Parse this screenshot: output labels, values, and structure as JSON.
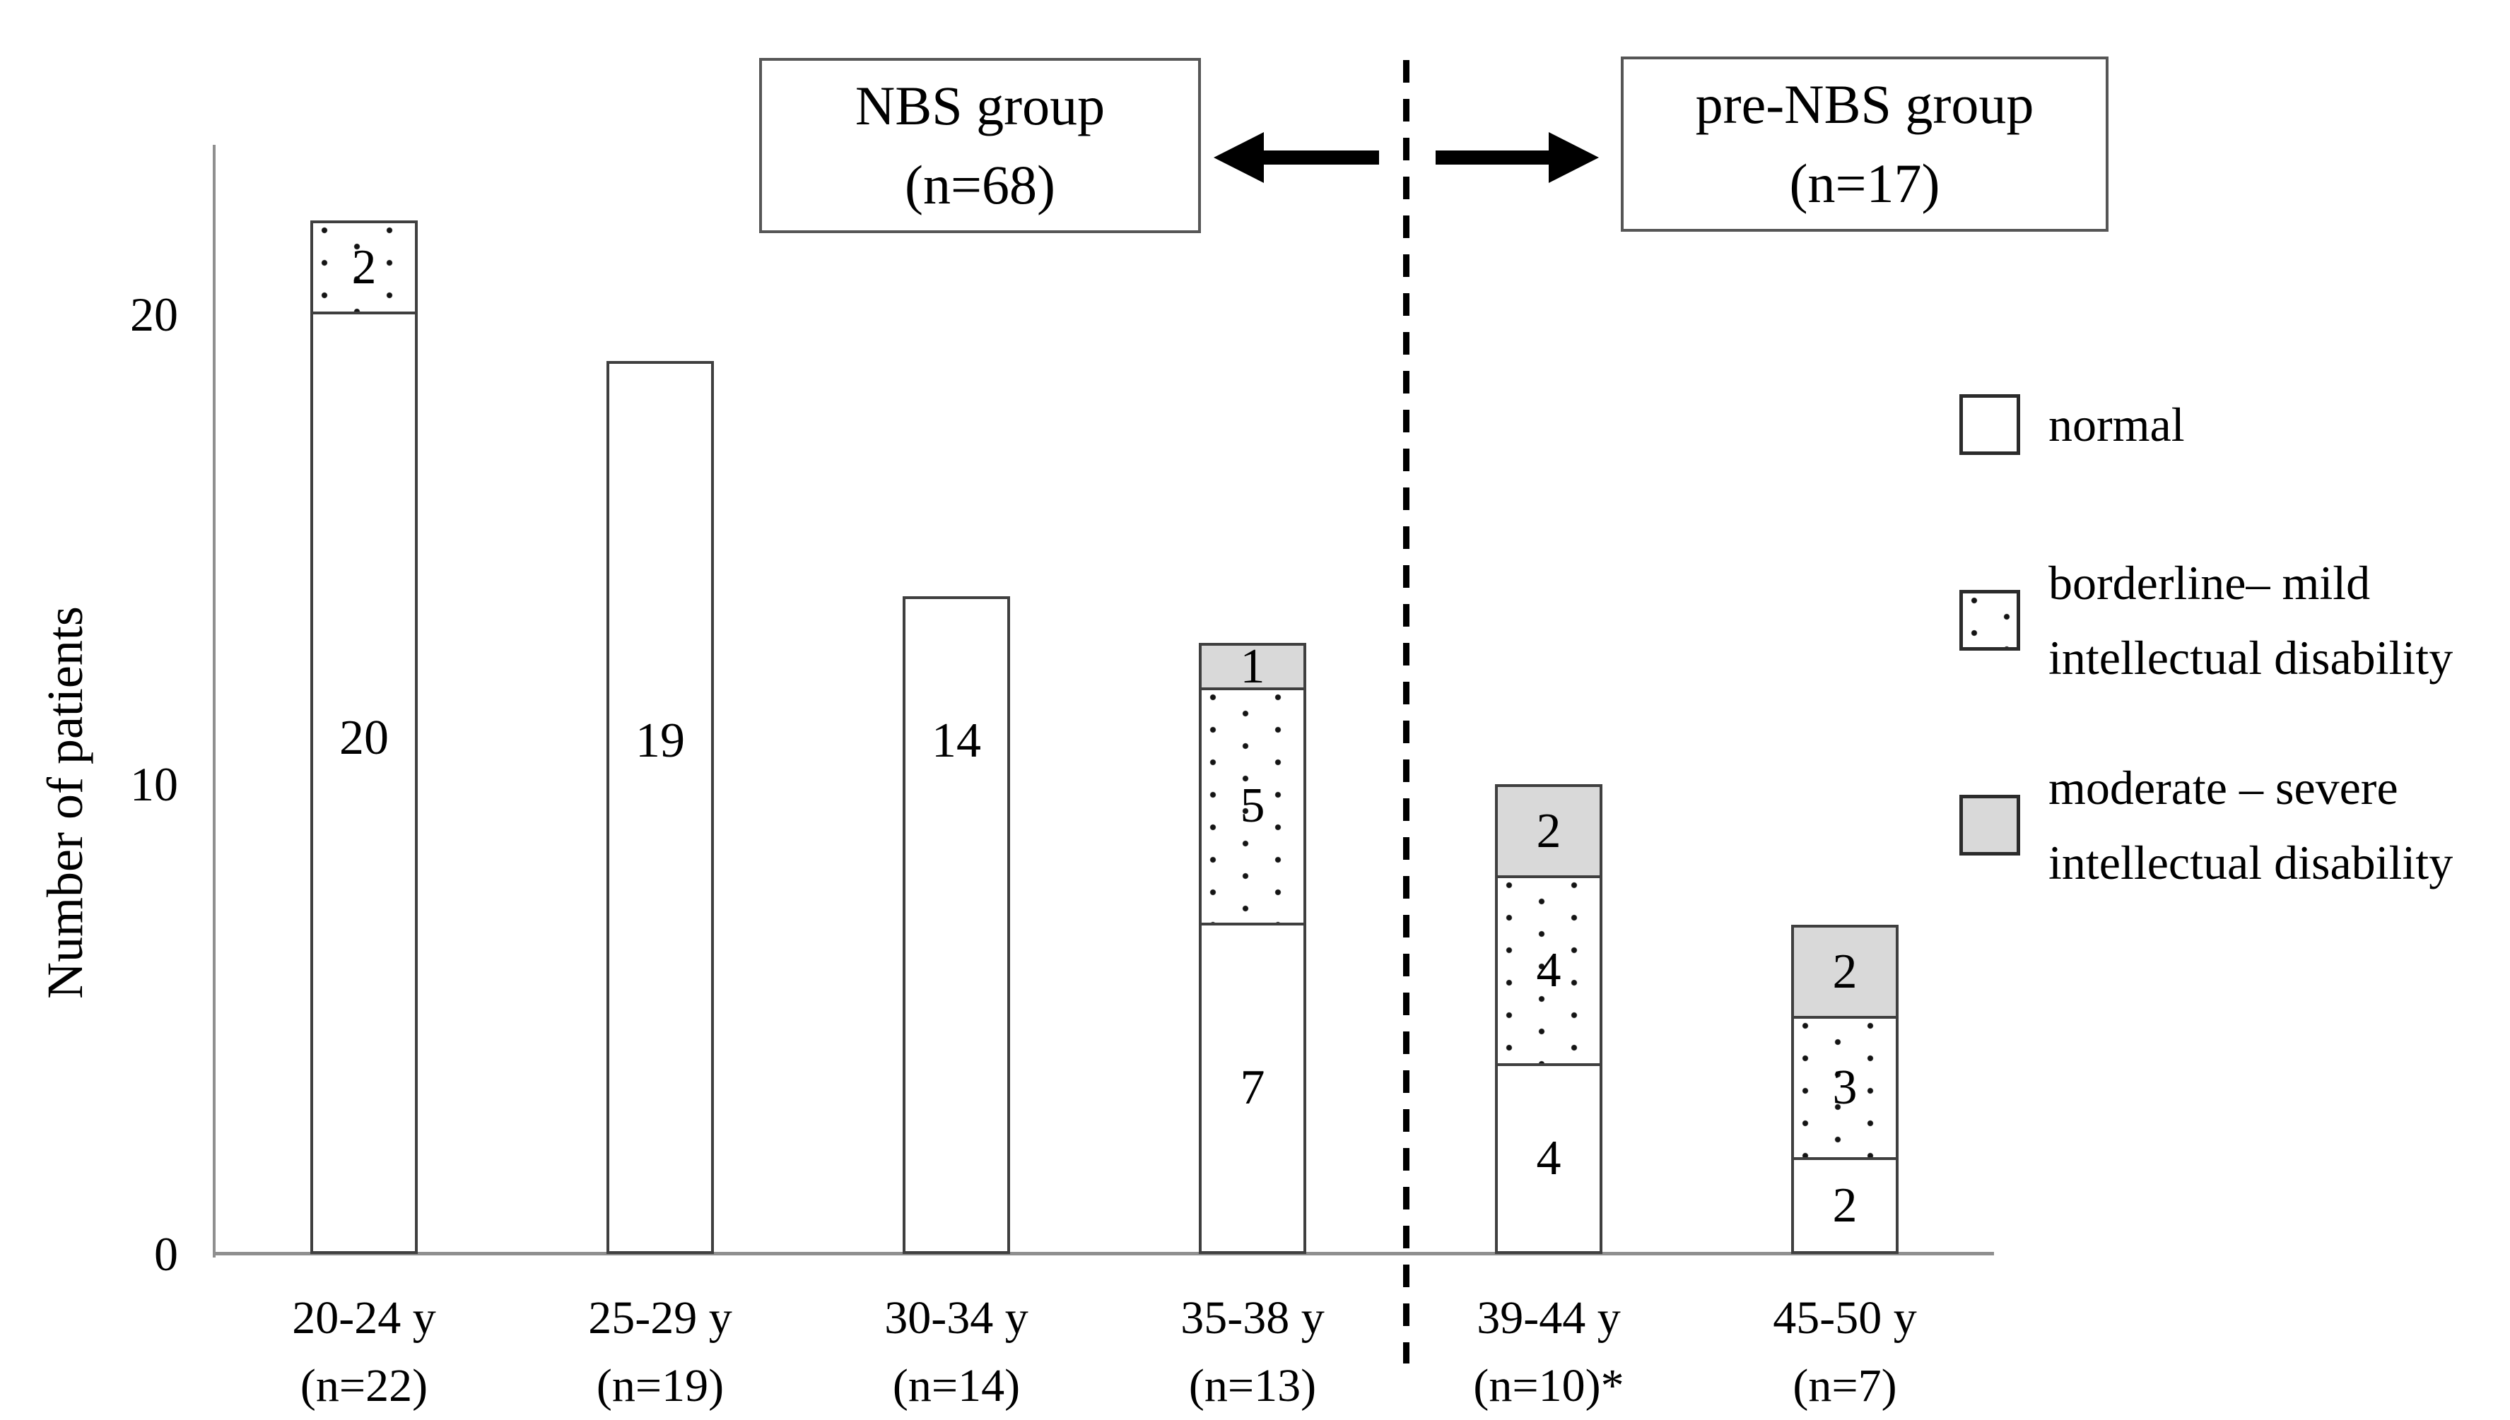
{
  "colors": {
    "gray_fill": "#d9d9d9",
    "bar_border": "#3f3f3f",
    "axis_line": "#8f8f8f",
    "text": "#000000",
    "divider": "#000000"
  },
  "group_boxes": {
    "left": {
      "title": "NBS group",
      "subtitle": "(n=68)"
    },
    "right": {
      "title": "pre-NBS group",
      "subtitle": "(n=17)"
    }
  },
  "legend": [
    {
      "key": "normal",
      "style": "white",
      "lines": [
        "normal"
      ]
    },
    {
      "key": "borderline-mild",
      "style": "dotted",
      "lines": [
        "borderline– mild",
        "intellectual disability"
      ]
    },
    {
      "key": "moderate-severe",
      "style": "gray",
      "lines": [
        "moderate – severe",
        "intellectual disability"
      ]
    }
  ],
  "chart_data": {
    "type": "bar",
    "stacked": true,
    "title": "",
    "xlabel": "",
    "ylabel": "Number of patients",
    "ylim": [
      0,
      24
    ],
    "yticks": [
      0,
      10,
      20
    ],
    "grid": false,
    "legend_position": "right",
    "categories": [
      {
        "range": "20-24 y",
        "n": "(n=22)"
      },
      {
        "range": "25-29 y",
        "n": "(n=19)"
      },
      {
        "range": "30-34 y",
        "n": "(n=14)"
      },
      {
        "range": "35-38 y",
        "n": "(n=13)"
      },
      {
        "range": "39-44 y",
        "n": "(n=10)*"
      },
      {
        "range": "45-50 y",
        "n": "(n=7)"
      }
    ],
    "series": [
      {
        "name": "normal",
        "style": "white",
        "values": [
          20,
          19,
          14,
          7,
          4,
          2
        ]
      },
      {
        "name": "borderline– mild intellectual disability",
        "style": "dotted",
        "values": [
          2,
          0,
          0,
          5,
          4,
          3
        ]
      },
      {
        "name": "moderate – severe intellectual disability",
        "style": "gray",
        "values": [
          0,
          0,
          0,
          1,
          2,
          2
        ]
      }
    ],
    "totals": [
      22,
      19,
      14,
      13,
      10,
      7
    ],
    "group_split_after_category_index": 3
  }
}
